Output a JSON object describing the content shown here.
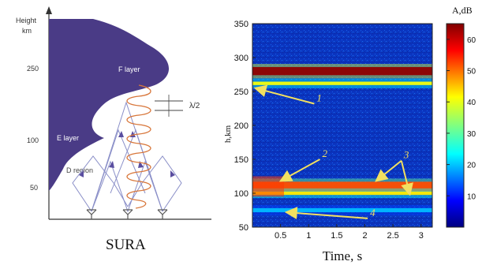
{
  "chart_data": [
    {
      "type": "diagram",
      "left_panel": {
        "ylabel": "Height",
        "yunit": "km",
        "ticks": [
          "250",
          "100",
          "50"
        ],
        "layers": [
          {
            "label": "F layer"
          },
          {
            "label": "E layer"
          },
          {
            "label": "D region"
          }
        ],
        "wavelength_label": "λ/2",
        "caption": "SURA"
      }
    },
    {
      "type": "heatmap",
      "xlabel": "Time, s",
      "ylabel": "h,km",
      "xlim": [
        0,
        3.2
      ],
      "ylim": [
        50,
        350
      ],
      "xticks": [
        "0.5",
        "1",
        "1.5",
        "2",
        "2.5",
        "3"
      ],
      "xtick_values": [
        0.5,
        1,
        1.5,
        2,
        2.5,
        3
      ],
      "yticks": [
        "50",
        "100",
        "150",
        "200",
        "250",
        "300",
        "350"
      ],
      "ytick_values": [
        50,
        100,
        150,
        200,
        250,
        300,
        350
      ],
      "colorbar": {
        "label": "A,dB",
        "ticks": [
          "10",
          "20",
          "30",
          "40",
          "50",
          "60"
        ],
        "tick_values": [
          10,
          20,
          30,
          40,
          50,
          60
        ],
        "range": [
          0,
          65
        ]
      },
      "bands": [
        {
          "name": "",
          "h_center": 280,
          "h_width": 12,
          "level": 64
        },
        {
          "name": "",
          "h_center": 262,
          "h_width": 5,
          "level": 40
        },
        {
          "name": "",
          "h_center": 110,
          "h_width": 14,
          "level": 52
        },
        {
          "name": "",
          "h_center": 100,
          "h_width": 5,
          "level": 42
        },
        {
          "name": "",
          "h_center": 75,
          "h_width": 6,
          "level": 20
        }
      ],
      "annotations": [
        {
          "text": "1",
          "x": 1.1,
          "y": 232,
          "arrow_to": [
            [
              0.05,
              255
            ]
          ]
        },
        {
          "text": "2",
          "x": 1.2,
          "y": 150,
          "arrow_to": [
            [
              0.5,
              118
            ]
          ]
        },
        {
          "text": "3",
          "x": 2.65,
          "y": 148,
          "arrow_to": [
            [
              2.2,
              118
            ],
            [
              2.8,
              98
            ]
          ]
        },
        {
          "text": "4",
          "x": 2.05,
          "y": 63,
          "arrow_to": [
            [
              0.6,
              72
            ]
          ]
        }
      ]
    }
  ]
}
